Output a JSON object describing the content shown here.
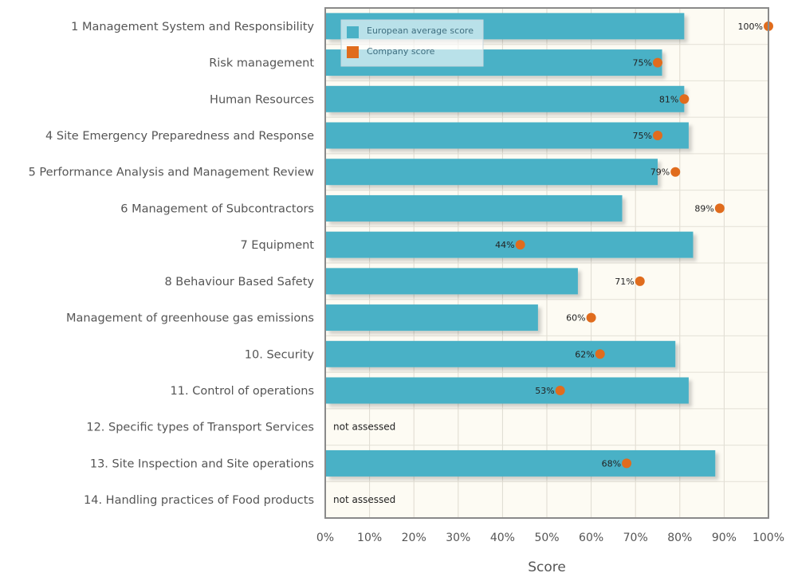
{
  "chart_data": {
    "type": "bar",
    "orientation": "horizontal",
    "categories": [
      "1  Management System and Responsibility",
      "Risk management",
      "Human Resources",
      "4  Site Emergency Preparedness and Response",
      "5  Performance Analysis and Management Review",
      "6  Management of Subcontractors",
      "7  Equipment",
      "8  Behaviour Based Safety",
      "Management of greenhouse gas emissions",
      "10. Security",
      "11. Control of operations",
      "12. Specific types of Transport Services",
      "13. Site Inspection and Site operations",
      "14. Handling practices of Food products"
    ],
    "series": [
      {
        "name": "European average score",
        "kind": "bar",
        "color": "#4ab1c6",
        "values": [
          81,
          76,
          81,
          82,
          75,
          67,
          83,
          57,
          48,
          79,
          82,
          null,
          88,
          null
        ]
      },
      {
        "name": "Company score",
        "kind": "point",
        "color": "#e06c1d",
        "values": [
          100,
          75,
          81,
          75,
          79,
          89,
          44,
          71,
          60,
          62,
          53,
          null,
          68,
          null
        ],
        "labels": [
          "100%",
          "75%",
          "81%",
          "75%",
          "79%",
          "89%",
          "44%",
          "71%",
          "60%",
          "62%",
          "53%",
          null,
          "68%",
          null
        ]
      }
    ],
    "not_assessed_label": "not assessed",
    "xlabel": "Score",
    "xlim": [
      0,
      100
    ],
    "xticks": [
      "0%",
      "10%",
      "20%",
      "30%",
      "40%",
      "50%",
      "60%",
      "70%",
      "80%",
      "90%",
      "100%"
    ],
    "grid": true,
    "legend_position": "top-left",
    "plot_background": "#fdfbf3"
  }
}
